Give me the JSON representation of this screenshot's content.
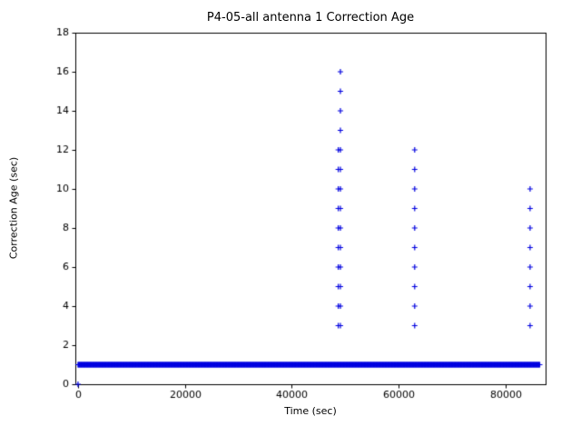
{
  "chart_data": {
    "type": "scatter",
    "title": "P4-05-all antenna 1 Correction Age",
    "xlabel": "Time (sec)",
    "ylabel": "Correction Age (sec)",
    "xlim": [
      -500,
      87500
    ],
    "ylim": [
      0,
      18
    ],
    "xticks": [
      0,
      20000,
      40000,
      60000,
      80000
    ],
    "yticks": [
      0,
      2,
      4,
      6,
      8,
      10,
      12,
      14,
      16,
      18
    ],
    "marker": "plus",
    "marker_color": "#0000e0",
    "grid": false,
    "legend": "none",
    "baseline_band": {
      "y": 1,
      "x_start": 0,
      "x_end": 86400,
      "step": 100
    },
    "points": [
      {
        "x": 0,
        "y": 0
      }
    ],
    "clusters": [
      {
        "x": 48700,
        "y_values": [
          3,
          4,
          5,
          6,
          7,
          8,
          9,
          10,
          11,
          12
        ]
      },
      {
        "x": 49100,
        "y_values": [
          3,
          4,
          5,
          6,
          7,
          8,
          9,
          10,
          11,
          12,
          13,
          14,
          15,
          16
        ]
      },
      {
        "x": 63000,
        "y_values": [
          3,
          4,
          5,
          6,
          7,
          8,
          9,
          10,
          11,
          12
        ]
      },
      {
        "x": 84600,
        "y_values": [
          3,
          4,
          5,
          6,
          7,
          8,
          9,
          10
        ]
      }
    ]
  }
}
